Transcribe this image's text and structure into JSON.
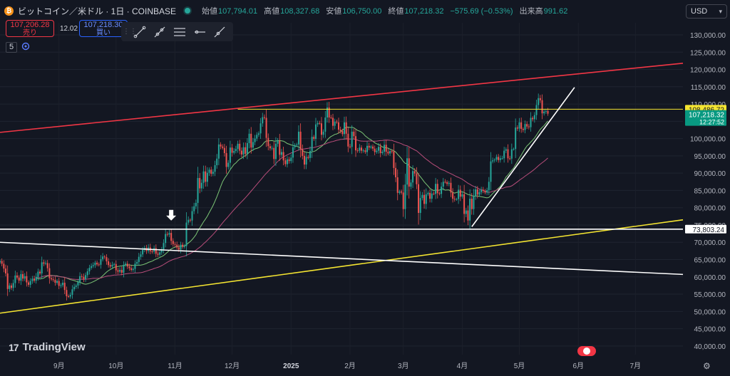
{
  "header": {
    "symbol": "ビットコイン／米ドル · 1日 · COINBASE",
    "coin_icon": "bitcoin-icon",
    "open_label": "始値",
    "open": "107,794.01",
    "high_label": "高値",
    "high": "108,327.68",
    "low_label": "安値",
    "low": "106,750.00",
    "close_label": "終値",
    "close": "107,218.32",
    "change": "−575.69 (−0.53%)",
    "volume_label": "出来高",
    "volume": "991.62"
  },
  "trade": {
    "sell_price": "107,206.28",
    "sell_label": "売り",
    "spread": "12.02",
    "buy_price": "107,218.30",
    "buy_label": "買い"
  },
  "indicator": {
    "value": "5",
    "icon": "indicator-settings-icon"
  },
  "currency": {
    "label": "USD"
  },
  "logo": {
    "text": "TradingView"
  },
  "colors": {
    "up": "#26a69a",
    "down": "#ef5350",
    "red_line": "#f23645",
    "yellow_line": "#f5e531",
    "ma_fast": "#7cc576",
    "ma_slow": "#b84d7a",
    "bg": "#131722"
  },
  "chart_data": {
    "type": "candlestick",
    "yscale": "linear",
    "ylim": [
      37500,
      133500
    ],
    "yticks": [
      40000,
      45000,
      50000,
      55000,
      60000,
      65000,
      70000,
      75000,
      80000,
      85000,
      90000,
      95000,
      100000,
      105000,
      110000,
      115000,
      120000,
      125000,
      130000
    ],
    "ytick_labels": [
      "40,000.00",
      "45,000.00",
      "50,000.00",
      "55,000.00",
      "60,000.00",
      "65,000.00",
      "70,000.00",
      "75,000.00",
      "80,000.00",
      "85,000.00",
      "90,000.00",
      "95,000.00",
      "100,000.00",
      "105,000.00",
      "110,000.00",
      "115,000.00",
      "120,000.00",
      "125,000.00",
      "130,000.00"
    ],
    "x_months": [
      "9月",
      "10月",
      "11月",
      "12月",
      "2025",
      "2月",
      "3月",
      "4月",
      "5月",
      "6月",
      "7月"
    ],
    "price_labels": [
      {
        "text": "108,486.72",
        "value": 108486.72,
        "style": "yellow"
      },
      {
        "text": "107,218.32",
        "sub": "12:27:52",
        "value": 107218.32,
        "style": "green"
      },
      {
        "text": "73,803.24",
        "value": 73803.24,
        "style": "white"
      }
    ],
    "trend_lines": [
      {
        "name": "red-resistance",
        "from": [
          "2024-08-01",
          101800
        ],
        "to": [
          "2025-07-26",
          121800
        ],
        "color": "#f23645"
      },
      {
        "name": "yellow-support",
        "from": [
          "2024-08-01",
          49500
        ],
        "to": [
          "2025-07-26",
          76500
        ],
        "color": "#f5e531"
      },
      {
        "name": "white-descending",
        "from": [
          "2024-08-01",
          70000
        ],
        "to": [
          "2025-07-26",
          60700
        ],
        "color": "#ffffff"
      },
      {
        "name": "white-horizontal",
        "from": [
          "2024-08-01",
          73803
        ],
        "to": [
          "2025-07-26",
          73803
        ],
        "color": "#ffffff"
      },
      {
        "name": "yellow-horizontal",
        "from": [
          "2024-12-04",
          108487
        ],
        "to": [
          "2025-07-26",
          108487
        ],
        "color": "#f5e531"
      },
      {
        "name": "white-uptrend",
        "from": [
          "2025-04-06",
          74500
        ],
        "to": [
          "2025-05-30",
          114800
        ],
        "color": "#ffffff"
      }
    ],
    "arrow": {
      "date": "2024-10-30",
      "value": 76500
    },
    "candles": {
      "start_date": "2024-08-01",
      "interval": "1D",
      "close": [
        64600,
        63800,
        62400,
        61000,
        56500,
        57500,
        56800,
        58200,
        60400,
        59800,
        58900,
        60800,
        59500,
        60200,
        58400,
        57700,
        58800,
        59500,
        58900,
        60000,
        61500,
        61000,
        64200,
        63800,
        64000,
        62500,
        59600,
        59300,
        59100,
        58300,
        58800,
        57400,
        57600,
        58300,
        56200,
        54400,
        54300,
        54800,
        56400,
        57100,
        57500,
        58500,
        60200,
        60000,
        59300,
        60500,
        61600,
        62600,
        63100,
        63400,
        64100,
        63600,
        63500,
        65100,
        65900,
        65700,
        64500,
        63400,
        63000,
        63500,
        63700,
        61900,
        61500,
        62000,
        61200,
        63400,
        63800,
        63000,
        62500,
        62000,
        62300,
        63800,
        64300,
        65800,
        66500,
        67800,
        68400,
        67500,
        68500,
        67400,
        67300,
        68300,
        66700,
        66400,
        67100,
        68000,
        69800,
        72400,
        72200,
        72700,
        70400,
        69500,
        69300,
        68500,
        67900,
        69300,
        68700,
        68900,
        75700,
        76500,
        76300,
        79000,
        80400,
        81400,
        88600,
        85600,
        87200,
        90500,
        87500,
        90100,
        91000,
        89800,
        90400,
        92300,
        94200,
        98300,
        97700,
        97300,
        95800,
        91800,
        93000,
        97400,
        95900,
        96400,
        97000,
        98500,
        96500,
        95400,
        97500,
        95600,
        98700,
        101400,
        97400,
        99000,
        100000,
        101100,
        101500,
        104400,
        106200,
        106000,
        100200,
        97800,
        97200,
        97300,
        94100,
        98500,
        99400,
        95300,
        96100,
        93700,
        92600,
        94000,
        93500,
        94500,
        97500,
        98100,
        98300,
        102000,
        96900,
        95000,
        92500,
        94700,
        94400,
        96400,
        100500,
        99900,
        104100,
        104500,
        104400,
        101100,
        102000,
        106100,
        109000,
        106100,
        106000,
        103700,
        104900,
        104700,
        102600,
        102200,
        101300,
        104700,
        101400,
        97700,
        97600,
        102000,
        100700,
        96600,
        96500,
        97400,
        96500,
        96600,
        96100,
        97900,
        97400,
        97700,
        97100,
        96100,
        96500,
        97600,
        95800,
        96200,
        98200,
        96200,
        95700,
        96400,
        96300,
        91500,
        88800,
        84300,
        84700,
        84400,
        79600,
        86700,
        94300,
        86100,
        87300,
        90600,
        89900,
        86800,
        78500,
        82800,
        83700,
        81100,
        83900,
        84300,
        82600,
        84100,
        84000,
        86900,
        84200,
        84000,
        86100,
        87500,
        87400,
        86900,
        87200,
        84400,
        82600,
        82400,
        82500,
        85200,
        83200,
        83900,
        78200,
        79200,
        76300,
        82600,
        79600,
        83400,
        85300,
        83800,
        84500,
        85200,
        84900,
        84400,
        85100,
        87500,
        93400,
        93700,
        93900,
        94700,
        93800,
        94300,
        94300,
        96500,
        96900,
        94300,
        94200,
        96900,
        97000,
        103200,
        102900,
        104700,
        102800,
        102500,
        104200,
        103500,
        103300,
        106000,
        105600,
        106800,
        109700,
        111700,
        111100,
        107300,
        107800,
        108000,
        107218
      ]
    }
  }
}
